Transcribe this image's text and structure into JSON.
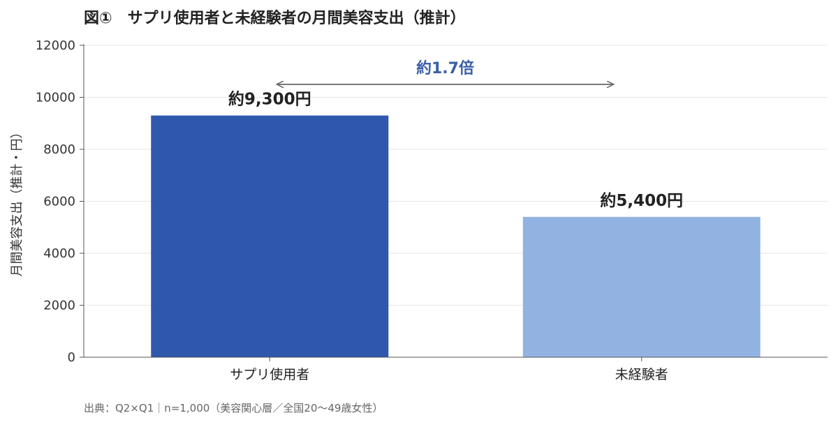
{
  "figure": {
    "title": "図①　サプリ使用者と未経験者の月間美容支出（推計）",
    "source": "出典：Q2×Q1｜n=1,000（美容関心層／全国20〜49歳女性）"
  },
  "chart_data": {
    "type": "bar",
    "categories": [
      "サプリ使用者",
      "未経験者"
    ],
    "values": [
      9300,
      5400
    ],
    "data_labels": [
      "約9,300円",
      "約5,400円"
    ],
    "bar_colors": [
      "#2f58ad",
      "#92b3e1"
    ],
    "title": "図①　サプリ使用者と未経験者の月間美容支出（推計）",
    "xlabel": "",
    "ylabel": "月間美容支出（推計・円）",
    "ylim": [
      0,
      12000
    ],
    "yticks": [
      0,
      2000,
      4000,
      6000,
      8000,
      10000,
      12000
    ],
    "grid": true,
    "annotation": {
      "text": "約1.7倍",
      "color": "#3a5ea8",
      "arrow": "double",
      "arrow_y": 10500
    }
  }
}
